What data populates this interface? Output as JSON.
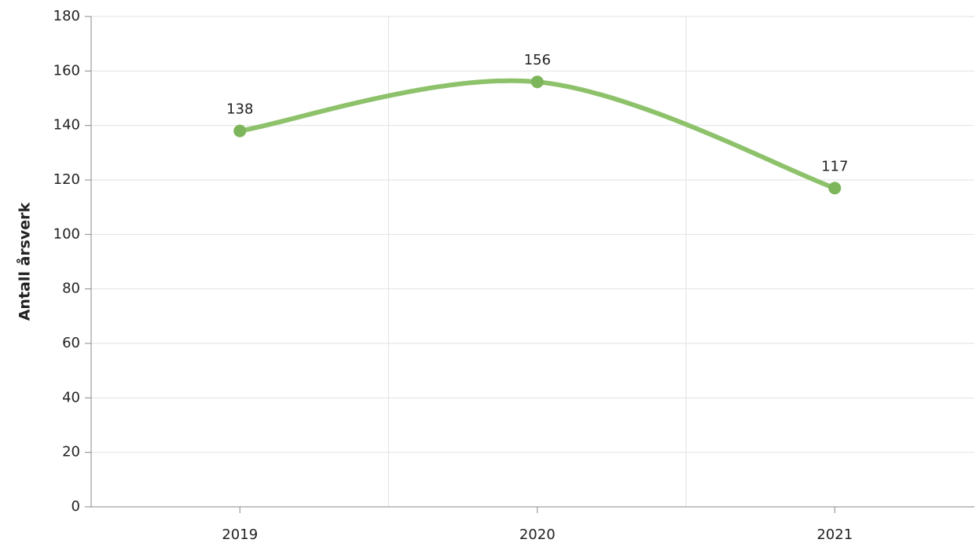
{
  "chart_data": {
    "type": "line",
    "y_label": "Antall årsverk",
    "categories": [
      "2019",
      "2020",
      "2021"
    ],
    "series": [
      {
        "name": "Antall årsverk",
        "color": "#8dc26b",
        "values": [
          138,
          156,
          117
        ]
      }
    ],
    "ylim": [
      0,
      180
    ],
    "yticks": [
      0,
      20,
      40,
      60,
      80,
      100,
      120,
      140,
      160,
      180
    ],
    "grid": true,
    "smooth": true
  }
}
